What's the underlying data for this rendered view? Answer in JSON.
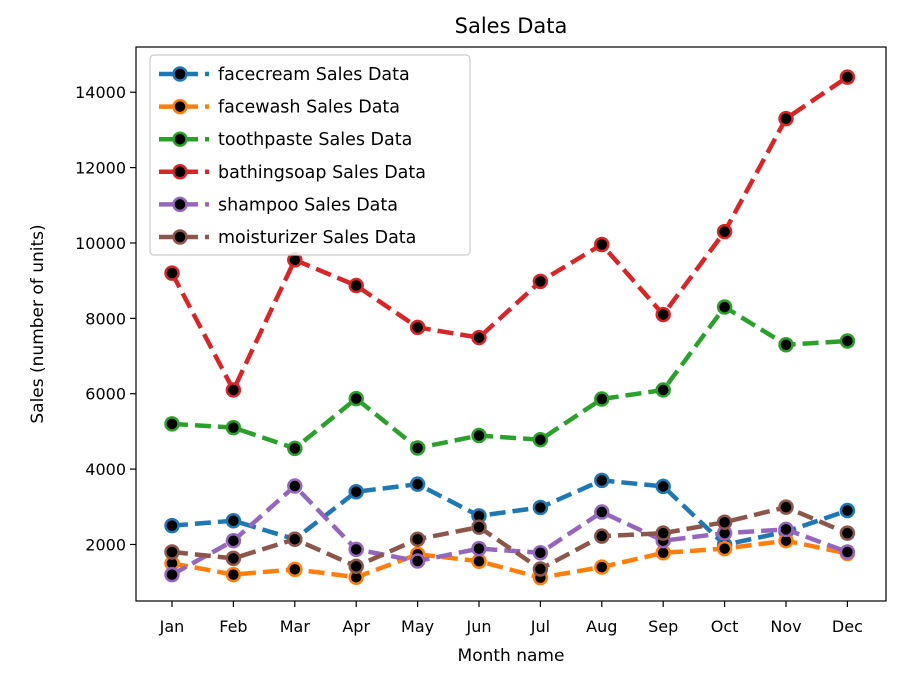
{
  "chart_data": {
    "type": "line",
    "title": "Sales Data",
    "xlabel": "Month name",
    "ylabel": "Sales (number of units)",
    "categories": [
      "Jan",
      "Feb",
      "Mar",
      "Apr",
      "May",
      "Jun",
      "Jul",
      "Aug",
      "Sep",
      "Oct",
      "Nov",
      "Dec"
    ],
    "ylim": [
      500,
      15200
    ],
    "yticks": [
      2000,
      4000,
      6000,
      8000,
      10000,
      12000,
      14000
    ],
    "ytick_labels": [
      "2000",
      "4000",
      "6000",
      "8000",
      "10000",
      "12000",
      "14000"
    ],
    "grid": false,
    "legend_position": "top-left",
    "series": [
      {
        "name": "facecream Sales Data",
        "color": "#1f77b4",
        "values": [
          2500,
          2630,
          2140,
          3400,
          3600,
          2760,
          2980,
          3700,
          3540,
          1990,
          2340,
          2900
        ]
      },
      {
        "name": "facewash Sales Data",
        "color": "#ff7f0e",
        "values": [
          1500,
          1200,
          1340,
          1130,
          1740,
          1555,
          1120,
          1400,
          1780,
          1890,
          2100,
          1760
        ]
      },
      {
        "name": "toothpaste Sales Data",
        "color": "#2ca02c",
        "values": [
          5200,
          5100,
          4550,
          5870,
          4560,
          4890,
          4780,
          5860,
          6100,
          8300,
          7300,
          7400
        ]
      },
      {
        "name": "bathingsoap Sales Data",
        "color": "#d62728",
        "values": [
          9200,
          6100,
          9550,
          8870,
          7760,
          7490,
          8980,
          9960,
          8100,
          10300,
          13300,
          14400
        ]
      },
      {
        "name": "shampoo Sales Data",
        "color": "#9467bd",
        "values": [
          1200,
          2100,
          3550,
          1870,
          1560,
          1890,
          1780,
          2860,
          2100,
          2300,
          2400,
          1800
        ]
      },
      {
        "name": "moisturizer Sales Data",
        "color": "#8c564b",
        "values": [
          1800,
          1630,
          2140,
          1420,
          2140,
          2460,
          1350,
          2220,
          2300,
          2590,
          2990,
          2300
        ]
      }
    ]
  }
}
